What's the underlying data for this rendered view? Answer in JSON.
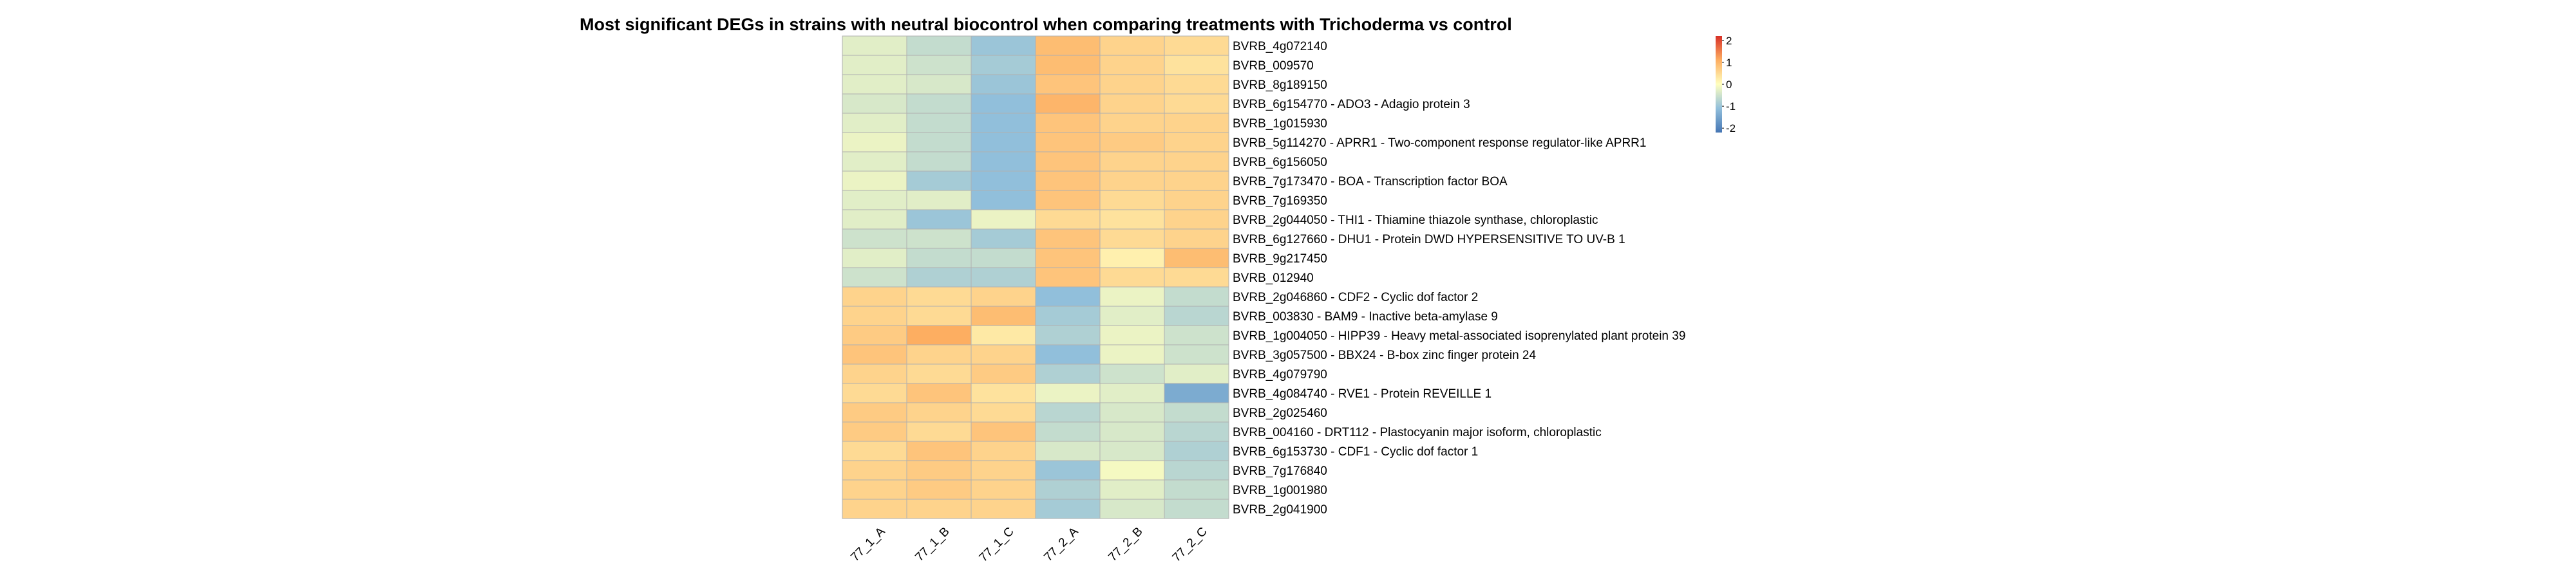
{
  "chart_data": {
    "type": "heatmap",
    "title": "Most significant DEGs in strains with neutral biocontrol when comparing treatments with Trichoderma vs control",
    "columns": [
      "77_1_A",
      "77_1_B",
      "77_1_C",
      "77_2_A",
      "77_2_B",
      "77_2_C"
    ],
    "rows": [
      "BVRB_4g072140",
      "BVRB_009570",
      "BVRB_8g189150",
      "BVRB_6g154770 - ADO3 - Adagio protein 3",
      "BVRB_1g015930",
      "BVRB_5g114270 - APRR1 - Two-component response regulator-like APRR1",
      "BVRB_6g156050",
      "BVRB_7g173470 - BOA - Transcription factor BOA",
      "BVRB_7g169350",
      "BVRB_2g044050 - THI1 - Thiamine thiazole synthase, chloroplastic",
      "BVRB_6g127660 - DHU1 - Protein DWD HYPERSENSITIVE TO UV-B 1",
      "BVRB_9g217450",
      "BVRB_012940",
      "BVRB_2g046860 - CDF2 - Cyclic dof factor 2",
      "BVRB_003830 - BAM9 - Inactive beta-amylase 9",
      "BVRB_1g004050 - HIPP39 - Heavy metal-associated isoprenylated plant protein 39",
      "BVRB_3g057500 - BBX24 - B-box zinc finger protein 24",
      "BVRB_4g079790",
      "BVRB_4g084740 - RVE1 - Protein REVEILLE 1",
      "BVRB_2g025460",
      "BVRB_004160 - DRT112 - Plastocyanin major isoform, chloroplastic",
      "BVRB_6g153730 - CDF1 - Cyclic dof factor 1",
      "BVRB_7g176840",
      "BVRB_1g001980",
      "BVRB_2g041900"
    ],
    "values": [
      [
        -0.3,
        -0.6,
        -1.0,
        0.9,
        0.6,
        0.5
      ],
      [
        -0.3,
        -0.5,
        -0.9,
        0.9,
        0.6,
        0.4
      ],
      [
        -0.3,
        -0.4,
        -1.0,
        0.8,
        0.6,
        0.5
      ],
      [
        -0.4,
        -0.6,
        -1.1,
        1.0,
        0.6,
        0.5
      ],
      [
        -0.3,
        -0.6,
        -1.1,
        0.8,
        0.6,
        0.6
      ],
      [
        -0.2,
        -0.6,
        -1.1,
        0.8,
        0.7,
        0.6
      ],
      [
        -0.3,
        -0.6,
        -1.1,
        0.8,
        0.6,
        0.6
      ],
      [
        -0.2,
        -0.9,
        -1.1,
        0.8,
        0.6,
        0.6
      ],
      [
        -0.3,
        -0.3,
        -1.1,
        0.8,
        0.5,
        0.6
      ],
      [
        -0.3,
        -1.0,
        -0.2,
        0.5,
        0.4,
        0.6
      ],
      [
        -0.5,
        -0.5,
        -0.9,
        0.8,
        0.5,
        0.6
      ],
      [
        -0.3,
        -0.6,
        -0.6,
        0.8,
        0.2,
        0.9
      ],
      [
        -0.5,
        -0.8,
        -0.8,
        0.8,
        0.5,
        0.5
      ],
      [
        0.6,
        0.5,
        0.6,
        -1.1,
        -0.2,
        -0.6
      ],
      [
        0.6,
        0.5,
        0.9,
        -0.9,
        -0.3,
        -0.7
      ],
      [
        0.7,
        1.1,
        0.3,
        -0.8,
        -0.2,
        -0.5
      ],
      [
        0.8,
        0.6,
        0.6,
        -1.1,
        -0.2,
        -0.5
      ],
      [
        0.6,
        0.5,
        0.7,
        -0.8,
        -0.5,
        -0.3
      ],
      [
        0.5,
        0.8,
        0.4,
        -0.2,
        -0.3,
        -1.4
      ],
      [
        0.7,
        0.6,
        0.5,
        -0.7,
        -0.4,
        -0.6
      ],
      [
        0.7,
        0.5,
        0.8,
        -0.6,
        -0.4,
        -0.7
      ],
      [
        0.5,
        0.8,
        0.6,
        -0.4,
        -0.4,
        -0.8
      ],
      [
        0.6,
        0.7,
        0.6,
        -1.0,
        -0.1,
        -0.7
      ],
      [
        0.6,
        0.7,
        0.6,
        -0.8,
        -0.3,
        -0.6
      ],
      [
        0.6,
        0.6,
        0.6,
        -0.9,
        -0.4,
        -0.6
      ]
    ],
    "color_scale": {
      "range": [
        -2.2,
        2.2
      ],
      "stops": [
        {
          "value": -2.2,
          "color": "#4575b4"
        },
        {
          "value": -1.1,
          "color": "#91bfdb"
        },
        {
          "value": 0.0,
          "color": "#ffffbf"
        },
        {
          "value": 1.1,
          "color": "#fdae61"
        },
        {
          "value": 2.2,
          "color": "#d73027"
        }
      ]
    },
    "legend": {
      "placement": "top-right",
      "ticks": [
        2,
        1,
        0,
        -1,
        -2
      ],
      "tick_labels": [
        "2",
        "1",
        "0",
        "-1",
        "-2"
      ]
    },
    "grid_color": "#b0b0b0"
  }
}
